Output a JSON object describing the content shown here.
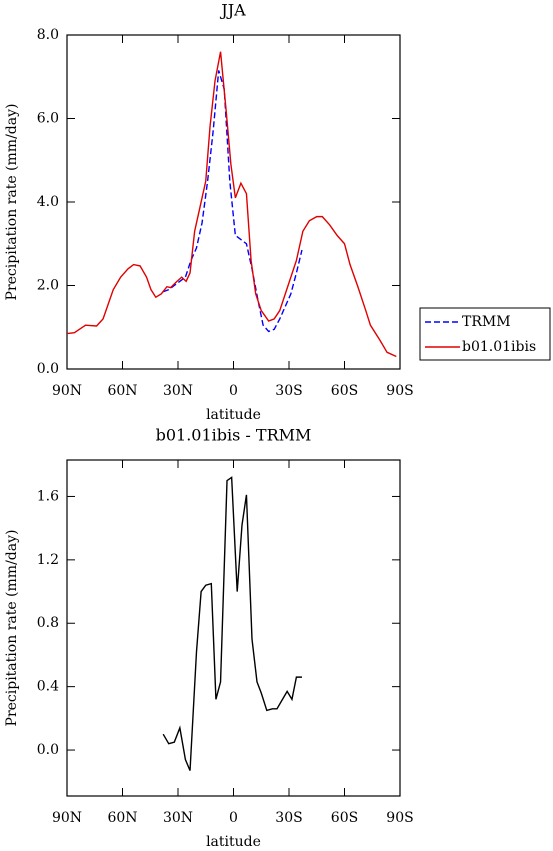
{
  "chart_data": [
    {
      "type": "line",
      "title": "JJA",
      "xlabel": "latitude",
      "ylabel": "Precipitation rate (mm/day)",
      "xlim": [
        90,
        -90
      ],
      "xticks": [
        {
          "value": 90,
          "label": "90N"
        },
        {
          "value": 60,
          "label": "60N"
        },
        {
          "value": 30,
          "label": "30N"
        },
        0,
        {
          "value": -30,
          "label": "30S"
        },
        {
          "value": -60,
          "label": "60S"
        },
        {
          "value": -90,
          "label": "90S"
        }
      ],
      "ylim": [
        0,
        8
      ],
      "yticks": [
        {
          "value": 0,
          "label": "0.0"
        },
        {
          "value": 2,
          "label": "2.0"
        },
        {
          "value": 4,
          "label": "4.0"
        },
        {
          "value": 6,
          "label": "6.0"
        },
        {
          "value": 8,
          "label": "8.0"
        }
      ],
      "legend": "right",
      "series": [
        {
          "name": "TRMM",
          "color": "#0000ff",
          "dashed": true,
          "x": [
            38,
            35,
            32,
            29,
            26,
            23,
            20,
            17,
            14,
            11,
            8,
            5,
            2,
            -1,
            -4,
            -7,
            -10,
            -13,
            -16,
            -19,
            -22,
            -25,
            -28,
            -31,
            -34,
            -37
          ],
          "values": [
            1.85,
            1.9,
            2.0,
            2.1,
            2.2,
            2.6,
            2.9,
            3.5,
            4.5,
            5.7,
            7.15,
            6.7,
            4.5,
            3.2,
            3.1,
            3.0,
            2.4,
            1.7,
            1.05,
            0.9,
            0.95,
            1.2,
            1.5,
            1.8,
            2.3,
            2.85
          ]
        },
        {
          "name": "b01.01ibis",
          "color": "#e00000",
          "dashed": false,
          "x": [
            90,
            86,
            80,
            74,
            70.5,
            65,
            61,
            57,
            54,
            50.5,
            47,
            44.6,
            42,
            39,
            36,
            34,
            31,
            28,
            25.6,
            23.5,
            21,
            18,
            15,
            12.7,
            10,
            7,
            4,
            1.4,
            -1,
            -4,
            -7,
            -9.5,
            -12,
            -15,
            -19,
            -22,
            -25,
            -29.5,
            -34,
            -37.5,
            -41,
            -45,
            -48,
            -52,
            -56,
            -60,
            -63,
            -67,
            -71.5,
            -74,
            -79,
            -83,
            -88
          ],
          "values": [
            0.85,
            0.87,
            1.05,
            1.03,
            1.2,
            1.9,
            2.2,
            2.4,
            2.5,
            2.47,
            2.2,
            1.9,
            1.72,
            1.8,
            1.97,
            1.95,
            2.08,
            2.2,
            2.1,
            2.3,
            3.3,
            3.9,
            4.5,
            5.8,
            6.9,
            7.6,
            6.2,
            4.9,
            4.1,
            4.45,
            4.2,
            2.6,
            1.8,
            1.4,
            1.15,
            1.2,
            1.4,
            2.0,
            2.6,
            3.3,
            3.55,
            3.65,
            3.65,
            3.45,
            3.2,
            3.0,
            2.5,
            2.0,
            1.4,
            1.05,
            0.7,
            0.4,
            0.3
          ]
        }
      ]
    },
    {
      "type": "line",
      "title": "b01.01ibis - TRMM",
      "xlabel": "latitude",
      "ylabel": "Precipitation rate (mm/day)",
      "xlim": [
        90,
        -90
      ],
      "xticks": [
        {
          "value": 90,
          "label": "90N"
        },
        {
          "value": 60,
          "label": "60N"
        },
        {
          "value": 30,
          "label": "30N"
        },
        0,
        {
          "value": -30,
          "label": "30S"
        },
        {
          "value": -60,
          "label": "60S"
        },
        {
          "value": -90,
          "label": "90S"
        }
      ],
      "ylim": [
        -0.29,
        1.83
      ],
      "yticks": [
        {
          "value": 0,
          "label": "0.0"
        },
        0.4,
        0.8,
        1.2,
        1.6
      ],
      "series": [
        {
          "color": "#000000",
          "dashed": false,
          "x": [
            38,
            35,
            32,
            29,
            26,
            23.5,
            20,
            17.5,
            15,
            12,
            9.5,
            7,
            3.5,
            1,
            -2,
            -4.6,
            -7,
            -10,
            -12.7,
            -15,
            -18,
            -21,
            -23.5,
            -26,
            -29,
            -31.6,
            -34,
            -37
          ],
          "values": [
            0.1,
            0.04,
            0.05,
            0.14,
            -0.06,
            -0.13,
            0.62,
            1.0,
            1.04,
            1.05,
            0.32,
            0.43,
            1.7,
            1.72,
            1.0,
            1.42,
            1.61,
            0.7,
            0.43,
            0.36,
            0.25,
            0.26,
            0.26,
            0.31,
            0.37,
            0.32,
            0.46,
            0.46
          ]
        }
      ]
    }
  ]
}
